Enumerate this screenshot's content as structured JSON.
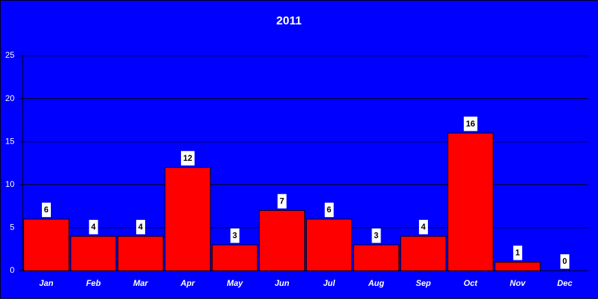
{
  "chart_data": {
    "type": "bar",
    "title": "2011",
    "categories": [
      "Jan",
      "Feb",
      "Mar",
      "Apr",
      "May",
      "Jun",
      "Jul",
      "Aug",
      "Sep",
      "Oct",
      "Nov",
      "Dec"
    ],
    "values": [
      6,
      4,
      4,
      12,
      3,
      7,
      6,
      3,
      4,
      16,
      1,
      0
    ],
    "color": "#ff0000",
    "background": "#0000ff",
    "ylim": [
      0,
      25
    ],
    "yticks": [
      0,
      5,
      10,
      15,
      20,
      25
    ],
    "grid": true
  }
}
